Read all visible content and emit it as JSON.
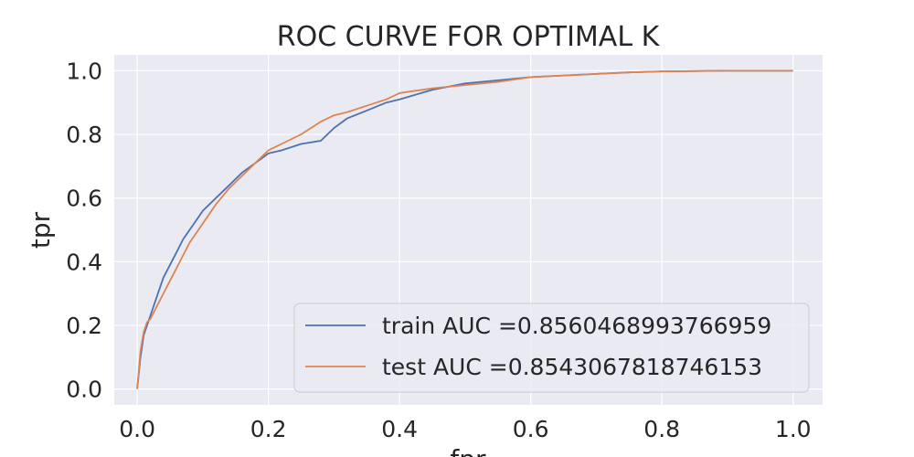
{
  "chart_data": {
    "type": "line",
    "title": "ROC CURVE FOR OPTIMAL K",
    "xlabel": "fpr",
    "ylabel": "tpr",
    "xlim": [
      -0.035,
      1.045
    ],
    "ylim": [
      -0.05,
      1.05
    ],
    "x_ticks": [
      0.0,
      0.2,
      0.4,
      0.6,
      0.8,
      1.0
    ],
    "x_tick_labels": [
      "0.0",
      "0.2",
      "0.4",
      "0.6",
      "0.8",
      "1.0"
    ],
    "y_ticks": [
      0.0,
      0.2,
      0.4,
      0.6,
      0.8,
      1.0
    ],
    "y_tick_labels": [
      "0.0",
      "0.2",
      "0.4",
      "0.6",
      "0.8",
      "1.0"
    ],
    "grid": true,
    "legend_position": "lower-right",
    "series": [
      {
        "name": "train AUC =0.8560468993766959",
        "color": "#4c72b0",
        "x": [
          0.0,
          0.005,
          0.01,
          0.015,
          0.02,
          0.03,
          0.04,
          0.05,
          0.06,
          0.07,
          0.08,
          0.09,
          0.1,
          0.12,
          0.14,
          0.16,
          0.18,
          0.2,
          0.22,
          0.25,
          0.28,
          0.3,
          0.32,
          0.35,
          0.38,
          0.4,
          0.45,
          0.5,
          0.55,
          0.6,
          0.65,
          0.7,
          0.75,
          0.8,
          0.9,
          1.0
        ],
        "y": [
          0.0,
          0.1,
          0.17,
          0.2,
          0.23,
          0.29,
          0.35,
          0.39,
          0.43,
          0.47,
          0.5,
          0.53,
          0.56,
          0.6,
          0.64,
          0.68,
          0.71,
          0.74,
          0.75,
          0.77,
          0.78,
          0.82,
          0.85,
          0.875,
          0.9,
          0.91,
          0.94,
          0.96,
          0.97,
          0.98,
          0.985,
          0.99,
          0.995,
          0.998,
          1.0,
          1.0
        ]
      },
      {
        "name": "test AUC =0.8543067818746153",
        "color": "#dd8452",
        "x": [
          0.0,
          0.005,
          0.01,
          0.015,
          0.02,
          0.03,
          0.04,
          0.05,
          0.06,
          0.07,
          0.08,
          0.09,
          0.1,
          0.12,
          0.14,
          0.16,
          0.18,
          0.2,
          0.22,
          0.25,
          0.28,
          0.3,
          0.32,
          0.35,
          0.38,
          0.4,
          0.45,
          0.5,
          0.55,
          0.6,
          0.65,
          0.7,
          0.75,
          0.8,
          0.9,
          1.0
        ],
        "y": [
          0.0,
          0.12,
          0.18,
          0.21,
          0.22,
          0.26,
          0.3,
          0.34,
          0.38,
          0.42,
          0.46,
          0.49,
          0.52,
          0.58,
          0.63,
          0.67,
          0.71,
          0.75,
          0.77,
          0.8,
          0.84,
          0.86,
          0.87,
          0.89,
          0.91,
          0.93,
          0.945,
          0.955,
          0.965,
          0.98,
          0.985,
          0.99,
          0.995,
          0.998,
          1.0,
          1.0
        ]
      }
    ]
  }
}
